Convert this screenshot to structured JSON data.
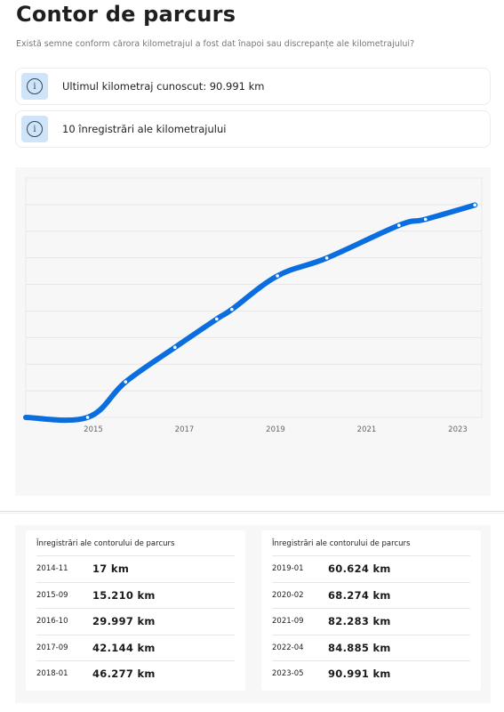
{
  "header": {
    "title": "Contor de parcurs",
    "subtitle": "Există semne conform cărora kilometrajul a fost dat înapoi sau discrepanțe ale kilometrajului?"
  },
  "info_cards": [
    {
      "icon": "info-icon",
      "glyph": "i",
      "text": "Ultimul kilometraj cunoscut: 90.991 km"
    },
    {
      "icon": "info-icon",
      "glyph": "i",
      "text": "10 înregistrări ale kilometrajului"
    }
  ],
  "chart_data": {
    "type": "line",
    "x_ticks": [
      "2015",
      "2017",
      "2019",
      "2021",
      "2023"
    ],
    "series": [
      {
        "points": [
          {
            "x": "2014-11",
            "y": 17
          },
          {
            "x": "2015-09",
            "y": 15210
          },
          {
            "x": "2016-10",
            "y": 29997
          },
          {
            "x": "2017-09",
            "y": 42144
          },
          {
            "x": "2018-01",
            "y": 46277
          },
          {
            "x": "2019-01",
            "y": 60624
          },
          {
            "x": "2020-02",
            "y": 68274
          },
          {
            "x": "2021-09",
            "y": 82283
          },
          {
            "x": "2022-04",
            "y": 84885
          },
          {
            "x": "2023-05",
            "y": 90991
          }
        ]
      }
    ],
    "ylim": [
      0,
      100000
    ],
    "grid": true,
    "line_color": "#0a6ee0",
    "background": "#f7f7f7"
  },
  "tables": [
    {
      "heading": "Înregistrări ale contorului de parcurs",
      "rows": [
        {
          "date": "2014-11",
          "km": "17 km"
        },
        {
          "date": "2015-09",
          "km": "15.210 km"
        },
        {
          "date": "2016-10",
          "km": "29.997 km"
        },
        {
          "date": "2017-09",
          "km": "42.144 km"
        },
        {
          "date": "2018-01",
          "km": "46.277 km"
        }
      ]
    },
    {
      "heading": "Înregistrări ale contorului de parcurs",
      "rows": [
        {
          "date": "2019-01",
          "km": "60.624 km"
        },
        {
          "date": "2020-02",
          "km": "68.274 km"
        },
        {
          "date": "2021-09",
          "km": "82.283 km"
        },
        {
          "date": "2022-04",
          "km": "84.885 km"
        },
        {
          "date": "2023-05",
          "km": "90.991 km"
        }
      ]
    }
  ]
}
